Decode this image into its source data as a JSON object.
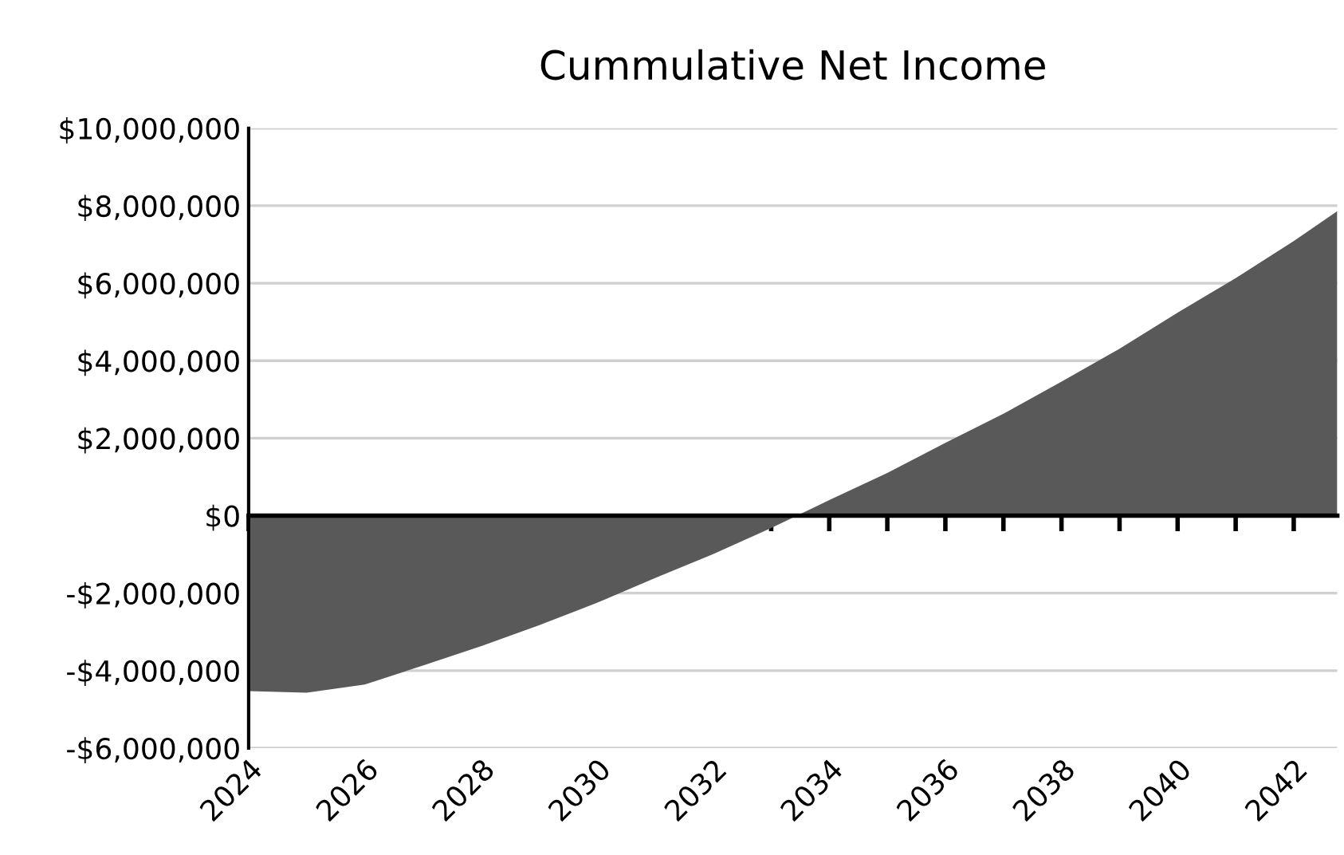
{
  "chart_data": {
    "type": "area",
    "title": "Cummulative Net Income",
    "x": [
      2024,
      2025,
      2026,
      2027,
      2028,
      2029,
      2030,
      2031,
      2032,
      2033,
      2034,
      2035,
      2036,
      2037,
      2038,
      2039,
      2040,
      2041,
      2042,
      2042.75
    ],
    "series": [
      {
        "color": "#595959",
        "values": [
          -4530000,
          -4570000,
          -4360000,
          -3870000,
          -3370000,
          -2830000,
          -2250000,
          -1610000,
          -990000,
          -320000,
          400000,
          1100000,
          1880000,
          2630000,
          3460000,
          4310000,
          5240000,
          6130000,
          7090000,
          7860000
        ]
      }
    ],
    "xlim": [
      2024,
      2042.75
    ],
    "xticks": [
      2024,
      {
        "value": 2025,
        "label": null
      },
      2026,
      {
        "value": 2027,
        "label": null
      },
      2028,
      {
        "value": 2029,
        "label": null
      },
      2030,
      {
        "value": 2031,
        "label": null
      },
      2032,
      {
        "value": 2033,
        "label": null
      },
      2034,
      {
        "value": 2035,
        "label": null
      },
      2036,
      {
        "value": 2037,
        "label": null
      },
      2038,
      {
        "value": 2039,
        "label": null
      },
      2040,
      {
        "value": 2041,
        "label": null
      },
      2042
    ],
    "ylim": [
      -6000000,
      10000000
    ],
    "yticks": [
      {
        "value": -6000000,
        "label": "-$6,000,000"
      },
      {
        "value": -4000000,
        "label": "-$4,000,000"
      },
      {
        "value": -2000000,
        "label": "-$2,000,000"
      },
      {
        "value": 0,
        "label": "$0"
      },
      {
        "value": 2000000,
        "label": "$2,000,000"
      },
      {
        "value": 4000000,
        "label": "$4,000,000"
      },
      {
        "value": 6000000,
        "label": "$6,000,000"
      },
      {
        "value": 8000000,
        "label": "$8,000,000"
      },
      {
        "value": 10000000,
        "label": "$10,000,000"
      }
    ],
    "grid": "y",
    "legend": false
  }
}
